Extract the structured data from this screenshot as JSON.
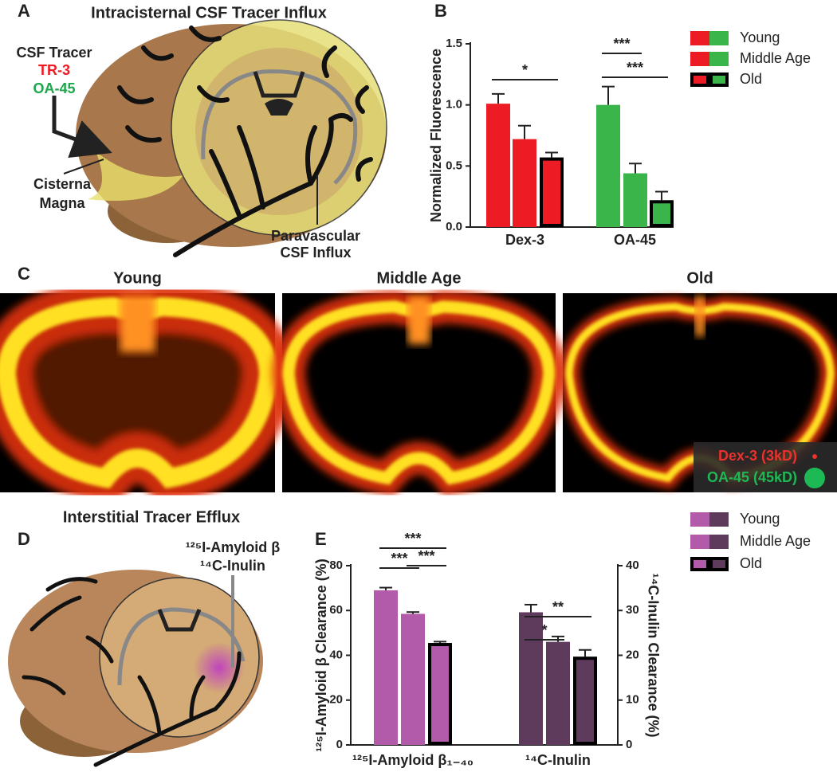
{
  "panel_a": {
    "label": "A",
    "title": "Intracisternal CSF Tracer Influx",
    "tracer_heading": "CSF Tracer",
    "tracers": [
      "TR-3",
      "OA-45"
    ],
    "tracer_colors": [
      "#ed1c24",
      "#1aa84b"
    ],
    "cisterna_magna": [
      "Cisterna",
      "Magna"
    ],
    "paravascular_influx": [
      "Paravascular",
      "CSF Influx"
    ]
  },
  "panel_c": {
    "label": "C",
    "images": [
      "Young",
      "Middle Age",
      "Old"
    ],
    "legend": [
      {
        "name": "Dex-3 (3kD)",
        "color": "#e8322c"
      },
      {
        "name": "OA-45 (45kD)",
        "color": "#1db954"
      }
    ]
  },
  "panel_d": {
    "label": "D",
    "title": "Interstitial Tracer Efflux",
    "tracers": [
      "¹²⁵I-Amyloid β",
      "¹⁴C-Inulin"
    ]
  },
  "chart_data": [
    {
      "type": "bar",
      "label": "B",
      "ylabel": "Normalized Fluorescence",
      "legend": [
        "Young",
        "Middle Age",
        "Old"
      ],
      "edge_widths": [
        1,
        1,
        4
      ],
      "groups": [
        {
          "category": "Dex-3",
          "color": "#ed1c24",
          "axis": "y",
          "values": [
            1.01,
            0.72,
            0.57
          ],
          "errors": [
            0.08,
            0.11,
            0.04
          ]
        },
        {
          "category": "OA-45",
          "color": "#39b54a",
          "axis": "y",
          "values": [
            1.0,
            0.44,
            0.22
          ],
          "errors": [
            0.15,
            0.08,
            0.07
          ]
        }
      ],
      "ylim": [
        0,
        1.5
      ],
      "yticks": [
        {
          "value": 0,
          "label": "0.0"
        },
        0.5,
        {
          "value": 1,
          "label": "1.0"
        },
        1.5
      ],
      "annotations": [
        "*",
        "***",
        "***"
      ]
    },
    {
      "type": "bar",
      "label": "E",
      "ylabel": "¹²⁵I-Amyloid β Clearance (%)",
      "y2label": "¹⁴C-Inulin Clearance (%)",
      "legend": [
        "Young",
        "Middle Age",
        "Old"
      ],
      "edge_widths": [
        1,
        1,
        4
      ],
      "groups": [
        {
          "category": "¹²⁵I-Amyloid β₁₋₄₀",
          "color": "#b35bab",
          "axis": "y",
          "values": [
            69,
            58.5,
            45.5
          ],
          "errors": [
            1.2,
            0.8,
            0.6
          ]
        },
        {
          "category": "¹⁴C-Inulin",
          "color": "#5e3a5c",
          "axis": "y2",
          "values": [
            29.6,
            23,
            19.7
          ],
          "errors": [
            1.7,
            1.2,
            1.5
          ]
        }
      ],
      "ylim": [
        0,
        80
      ],
      "yticks": [
        0,
        20,
        40,
        60,
        80
      ],
      "y2lim": [
        0,
        40
      ],
      "y2ticks": [
        0,
        10,
        20,
        30,
        40
      ],
      "annotations": [
        "***",
        "***",
        "***",
        "**",
        "*"
      ]
    }
  ]
}
